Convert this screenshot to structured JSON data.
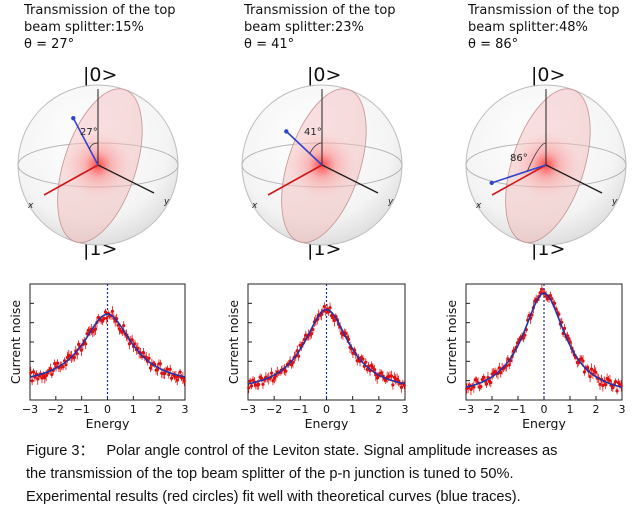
{
  "panels": [
    {
      "heading_line1": "Transmission of the top",
      "heading_line2": "beam splitter:15%",
      "theta_text": "θ = 27°",
      "angle_label": "27°",
      "theta_deg": 27
    },
    {
      "heading_line1": "Transmission of the top",
      "heading_line2": "beam splitter:23%",
      "theta_text": "θ = 41°",
      "angle_label": "41°",
      "theta_deg": 41
    },
    {
      "heading_line1": "Transmission of the top",
      "heading_line2": "beam splitter:48%",
      "theta_text": "θ = 86°",
      "angle_label": "86°",
      "theta_deg": 86
    }
  ],
  "ket_top": "|0>",
  "ket_bottom": "|1>",
  "axis_x_label": "x",
  "axis_y_label": "y",
  "chart_data": [
    {
      "type": "scatter",
      "xlabel": "Energy",
      "ylabel": "Current noise",
      "xlim": [
        -3,
        3
      ],
      "xticks": [
        "−3",
        "−2",
        "−1",
        "0",
        "1",
        "2",
        "3"
      ],
      "fit_amplitude": 0.62,
      "fit_baseline": 0.12,
      "fit_width": 1.15,
      "marker_line_x": 0
    },
    {
      "type": "scatter",
      "xlabel": "Energy",
      "ylabel": "Current noise",
      "xlim": [
        -3,
        3
      ],
      "xticks": [
        "−3",
        "−2",
        "−1",
        "0",
        "1",
        "2",
        "3"
      ],
      "fit_amplitude": 0.72,
      "fit_baseline": 0.06,
      "fit_width": 1.05,
      "marker_line_x": 0
    },
    {
      "type": "scatter",
      "xlabel": "Energy",
      "ylabel": "Current noise",
      "xlim": [
        -3,
        3
      ],
      "xticks": [
        "−3",
        "−2",
        "−1",
        "0",
        "1",
        "2",
        "3"
      ],
      "fit_amplitude": 0.9,
      "fit_baseline": 0.02,
      "fit_width": 1.0,
      "marker_line_x": 0
    }
  ],
  "caption": {
    "label": "Figure 3：",
    "text": "Polar angle control of the Leviton state. Signal amplitude increases as the transmission of the top beam splitter of the p-n junction is tuned to 50%. Experimental results (red circles) fit well with theoretical curves (blue traces).",
    "line1": "Polar angle control of the Leviton state. Signal amplitude increases as",
    "line2": "the transmission of the top beam splitter of the p-n junction is tuned to 50%.",
    "line3": "Experimental results (red circles) fit well with theoretical curves (blue traces)."
  },
  "colors": {
    "fit": "#2233aa",
    "data": "#e01010",
    "vector": "#3344cc",
    "axis_red": "#d01818",
    "dashed": "#1a2a9a"
  }
}
